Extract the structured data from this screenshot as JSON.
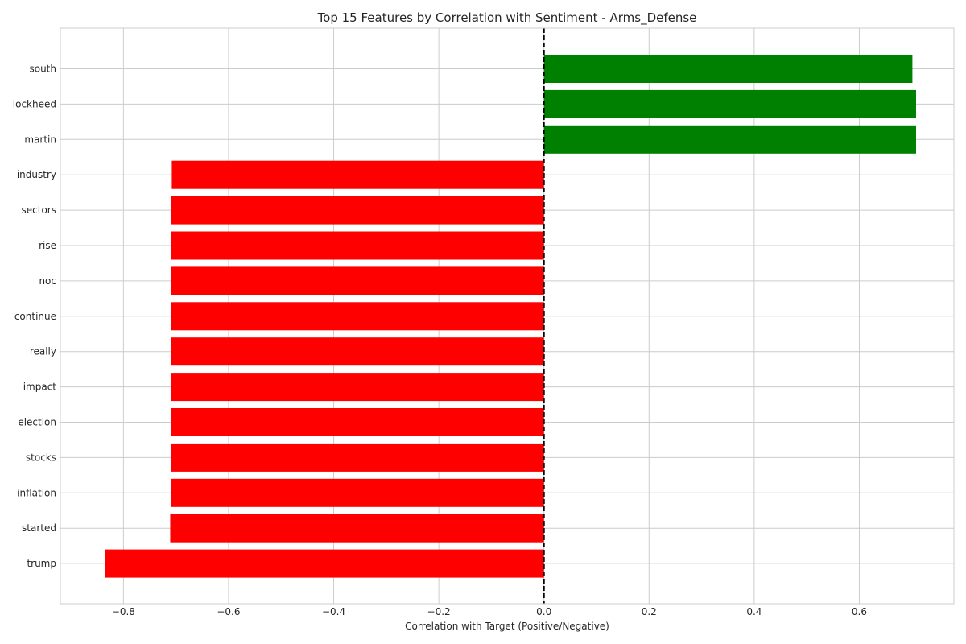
{
  "chart_data": {
    "type": "bar",
    "orientation": "horizontal",
    "title": "Top 15 Features by Correlation with Sentiment - Arms_Defense",
    "xlabel": "Correlation with Target (Positive/Negative)",
    "ylabel": "",
    "xlim": [
      -0.92,
      0.78
    ],
    "xticks": [
      -0.8,
      -0.6,
      -0.4,
      -0.2,
      0.0,
      0.2,
      0.4,
      0.6
    ],
    "xtick_labels": [
      "−0.8",
      "−0.6",
      "−0.4",
      "−0.2",
      "0.0",
      "0.2",
      "0.4",
      "0.6"
    ],
    "grid": true,
    "reference_line": {
      "x": 0,
      "style": "dashed",
      "color": "#000000"
    },
    "positive_color": "#008000",
    "negative_color": "#ff0000",
    "categories": [
      "south",
      "lockheed",
      "martin",
      "industry",
      "sectors",
      "rise",
      "noc",
      "continue",
      "really",
      "impact",
      "election",
      "stocks",
      "inflation",
      "started",
      "trump"
    ],
    "values": [
      0.701,
      0.708,
      0.708,
      -0.708,
      -0.709,
      -0.709,
      -0.709,
      -0.709,
      -0.709,
      -0.709,
      -0.709,
      -0.709,
      -0.709,
      -0.711,
      -0.835
    ]
  }
}
